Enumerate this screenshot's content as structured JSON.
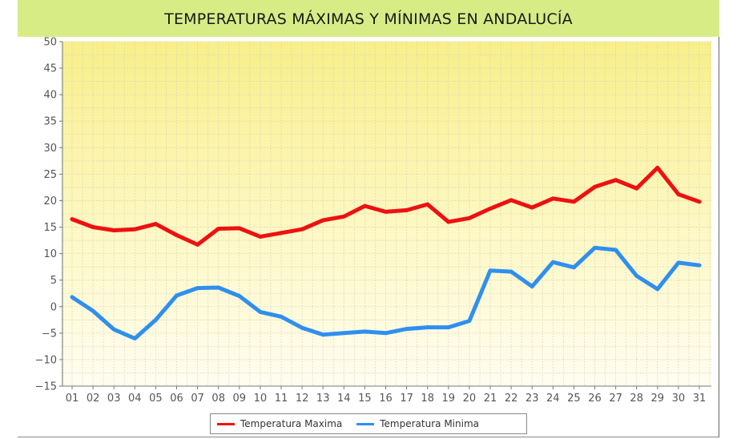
{
  "chart_data": {
    "type": "line",
    "title": "TEMPERATURAS MÁXIMAS Y MÍNIMAS EN ANDALUCÍA",
    "xlabel": "",
    "ylabel": "",
    "ylim": [
      -15,
      50
    ],
    "yticks": [
      50,
      45,
      40,
      35,
      30,
      25,
      20,
      15,
      10,
      5,
      0,
      -5,
      -10,
      -15
    ],
    "categories": [
      "01",
      "02",
      "03",
      "04",
      "05",
      "06",
      "07",
      "08",
      "09",
      "10",
      "11",
      "12",
      "13",
      "14",
      "15",
      "16",
      "17",
      "18",
      "19",
      "20",
      "21",
      "22",
      "23",
      "24",
      "25",
      "26",
      "27",
      "28",
      "29",
      "30",
      "31"
    ],
    "grid": true,
    "legend_position": "bottom",
    "series": [
      {
        "name": "Temperatura Maxima",
        "color": "#ee1111",
        "values": [
          16.5,
          15.0,
          14.4,
          14.6,
          15.6,
          13.5,
          11.7,
          14.7,
          14.8,
          13.2,
          13.9,
          14.6,
          16.3,
          17.0,
          19.0,
          17.9,
          18.2,
          19.3,
          16.0,
          16.7,
          18.5,
          20.1,
          18.7,
          20.4,
          19.8,
          22.6,
          23.9,
          22.3,
          26.2,
          21.2,
          19.8
        ]
      },
      {
        "name": "Temperatura Minima",
        "color": "#2f8fef",
        "values": [
          1.8,
          -0.8,
          -4.3,
          -6.0,
          -2.5,
          2.1,
          3.5,
          3.6,
          2.0,
          -1.0,
          -1.9,
          -4.0,
          -5.3,
          -5.0,
          -4.7,
          -5.0,
          -4.2,
          -3.9,
          -3.9,
          -2.7,
          6.8,
          6.6,
          3.8,
          8.4,
          7.4,
          11.1,
          10.7,
          5.8,
          3.3,
          8.3,
          7.8
        ]
      }
    ]
  }
}
